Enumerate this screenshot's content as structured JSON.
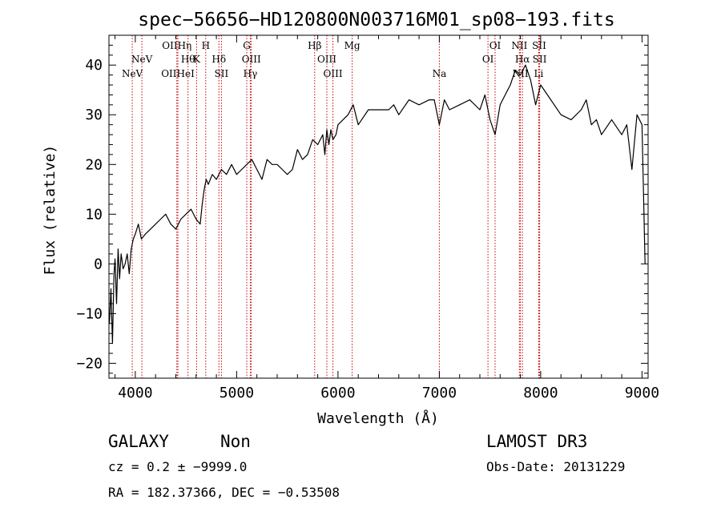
{
  "chart_data": {
    "type": "line",
    "title": "spec−56656−HD120800N003716M01_sp08−193.fits",
    "xlabel": "Wavelength (Å)",
    "ylabel": "Flux (relative)",
    "xlim": [
      3740,
      9060
    ],
    "ylim": [
      -23,
      46
    ],
    "x_ticks": [
      4000,
      5000,
      6000,
      7000,
      8000,
      9000
    ],
    "x_tick_labels": [
      "4000",
      "5000",
      "6000",
      "7000",
      "8000",
      "9000"
    ],
    "y_ticks": [
      -20,
      -10,
      0,
      10,
      20,
      30,
      40
    ],
    "y_tick_labels": [
      "−20",
      "−10",
      "0",
      "10",
      "20",
      "30",
      "40"
    ],
    "series": [
      {
        "name": "spectrum",
        "color": "#000000",
        "x": [
          3745,
          3760,
          3775,
          3790,
          3800,
          3815,
          3830,
          3845,
          3860,
          3880,
          3900,
          3920,
          3940,
          3960,
          3980,
          4000,
          4030,
          4060,
          4100,
          4150,
          4200,
          4250,
          4300,
          4350,
          4400,
          4450,
          4500,
          4550,
          4600,
          4640,
          4660,
          4680,
          4700,
          4720,
          4760,
          4800,
          4850,
          4900,
          4950,
          5000,
          5050,
          5100,
          5150,
          5200,
          5250,
          5300,
          5350,
          5400,
          5450,
          5500,
          5550,
          5600,
          5650,
          5700,
          5750,
          5800,
          5850,
          5870,
          5890,
          5910,
          5930,
          5950,
          5980,
          6000,
          6050,
          6100,
          6150,
          6200,
          6300,
          6400,
          6500,
          6550,
          6600,
          6700,
          6800,
          6900,
          6950,
          7000,
          7050,
          7100,
          7200,
          7300,
          7400,
          7450,
          7500,
          7550,
          7600,
          7650,
          7700,
          7750,
          7800,
          7850,
          7900,
          7950,
          8000,
          8100,
          8200,
          8300,
          8400,
          8450,
          8500,
          8550,
          8600,
          8700,
          8800,
          8850,
          8900,
          8950,
          9000,
          9030
        ],
        "y": [
          -12,
          -5,
          -16,
          -2,
          1,
          -8,
          3,
          -3,
          2,
          -1,
          0,
          2,
          -2,
          3,
          5,
          6,
          8,
          5,
          6,
          7,
          8,
          9,
          10,
          8,
          7,
          9,
          10,
          11,
          9,
          8,
          12,
          15,
          17,
          16,
          18,
          17,
          19,
          18,
          20,
          18,
          19,
          20,
          21,
          19,
          17,
          21,
          20,
          20,
          19,
          18,
          19,
          23,
          21,
          22,
          25,
          24,
          26,
          22,
          27,
          24,
          27,
          25,
          26,
          28,
          29,
          30,
          32,
          28,
          31,
          31,
          31,
          32,
          30,
          33,
          32,
          33,
          33,
          28,
          33,
          31,
          32,
          33,
          31,
          34,
          29,
          26,
          32,
          34,
          36,
          39,
          38,
          40,
          37,
          32,
          36,
          33,
          30,
          29,
          31,
          33,
          28,
          29,
          26,
          29,
          26,
          28,
          19,
          30,
          28,
          0
        ]
      }
    ],
    "emission_lines": [
      {
        "label": "NeV",
        "wavelength": 3970,
        "row": 3
      },
      {
        "label": "NeV",
        "wavelength": 4065,
        "row": 2
      },
      {
        "label": "OIIHη",
        "wavelength": 4410,
        "row": 1
      },
      {
        "label": "OIIHeI",
        "wavelength": 4420,
        "row": 3
      },
      {
        "label": "Hθ",
        "wavelength": 4520,
        "row": 2
      },
      {
        "label": "K",
        "wavelength": 4605,
        "row": 2
      },
      {
        "label": "H",
        "wavelength": 4695,
        "row": 1
      },
      {
        "label": "Hδ",
        "wavelength": 4825,
        "row": 2
      },
      {
        "label": "SII",
        "wavelength": 4850,
        "row": 3
      },
      {
        "label": "G",
        "wavelength": 5100,
        "row": 1
      },
      {
        "label": "OIII",
        "wavelength": 5145,
        "row": 2
      },
      {
        "label": "Hγ",
        "wavelength": 5135,
        "row": 3
      },
      {
        "label": "Hβ",
        "wavelength": 5770,
        "row": 1
      },
      {
        "label": "OIII",
        "wavelength": 5890,
        "row": 2
      },
      {
        "label": "OIII",
        "wavelength": 5950,
        "row": 3
      },
      {
        "label": "Mg",
        "wavelength": 6140,
        "row": 1
      },
      {
        "label": "Na",
        "wavelength": 7000,
        "row": 3
      },
      {
        "label": "OI",
        "wavelength": 7480,
        "row": 2
      },
      {
        "label": "OI",
        "wavelength": 7550,
        "row": 1
      },
      {
        "label": "NII",
        "wavelength": 7790,
        "row": 1
      },
      {
        "label": "Hα",
        "wavelength": 7820,
        "row": 2
      },
      {
        "label": "NII",
        "wavelength": 7800,
        "row": 3
      },
      {
        "label": "SII",
        "wavelength": 7985,
        "row": 1
      },
      {
        "label": "SII",
        "wavelength": 7990,
        "row": 2
      },
      {
        "label": "Li",
        "wavelength": 7980,
        "row": 3
      }
    ],
    "line_marker_color": "#cc0000"
  },
  "info": {
    "object_class": "GALAXY",
    "subclass": "Non",
    "survey": "LAMOST DR3",
    "cz": "cz = 0.2 ± −9999.0",
    "obs_date": "Obs-Date: 20131229",
    "coords": "RA = 182.37366, DEC =  −0.53508"
  }
}
